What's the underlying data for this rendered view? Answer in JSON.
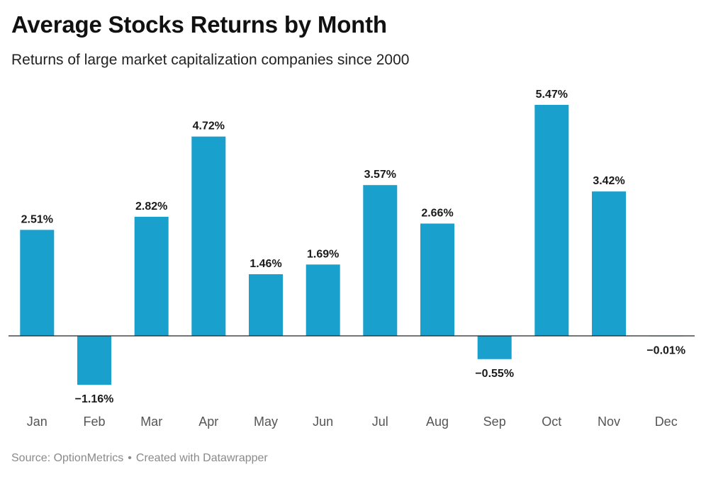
{
  "header": {
    "title": "Average Stocks Returns by Month",
    "subtitle": "Returns of large market capitalization companies since 2000"
  },
  "footer": {
    "source": "Source: OptionMetrics",
    "separator": "•",
    "credit": "Created with Datawrapper"
  },
  "colors": {
    "bar": "#1aa0cc",
    "baseline": "#222222"
  },
  "chart_data": {
    "type": "bar",
    "title": "Average Stocks Returns by Month",
    "subtitle": "Returns of large market capitalization companies since 2000",
    "xlabel": "",
    "ylabel": "",
    "unit": "%",
    "grid": false,
    "categories": [
      "Jan",
      "Feb",
      "Mar",
      "Apr",
      "May",
      "Jun",
      "Jul",
      "Aug",
      "Sep",
      "Oct",
      "Nov",
      "Dec"
    ],
    "values": [
      2.51,
      -1.16,
      2.82,
      4.72,
      1.46,
      1.69,
      3.57,
      2.66,
      -0.55,
      5.47,
      3.42,
      -0.01
    ],
    "labels": [
      "2.51%",
      "−1.16%",
      "2.82%",
      "4.72%",
      "1.46%",
      "1.69%",
      "3.57%",
      "2.66%",
      "−0.55%",
      "5.47%",
      "3.42%",
      "−0.01%"
    ],
    "ylim": [
      -1.16,
      5.47
    ]
  }
}
